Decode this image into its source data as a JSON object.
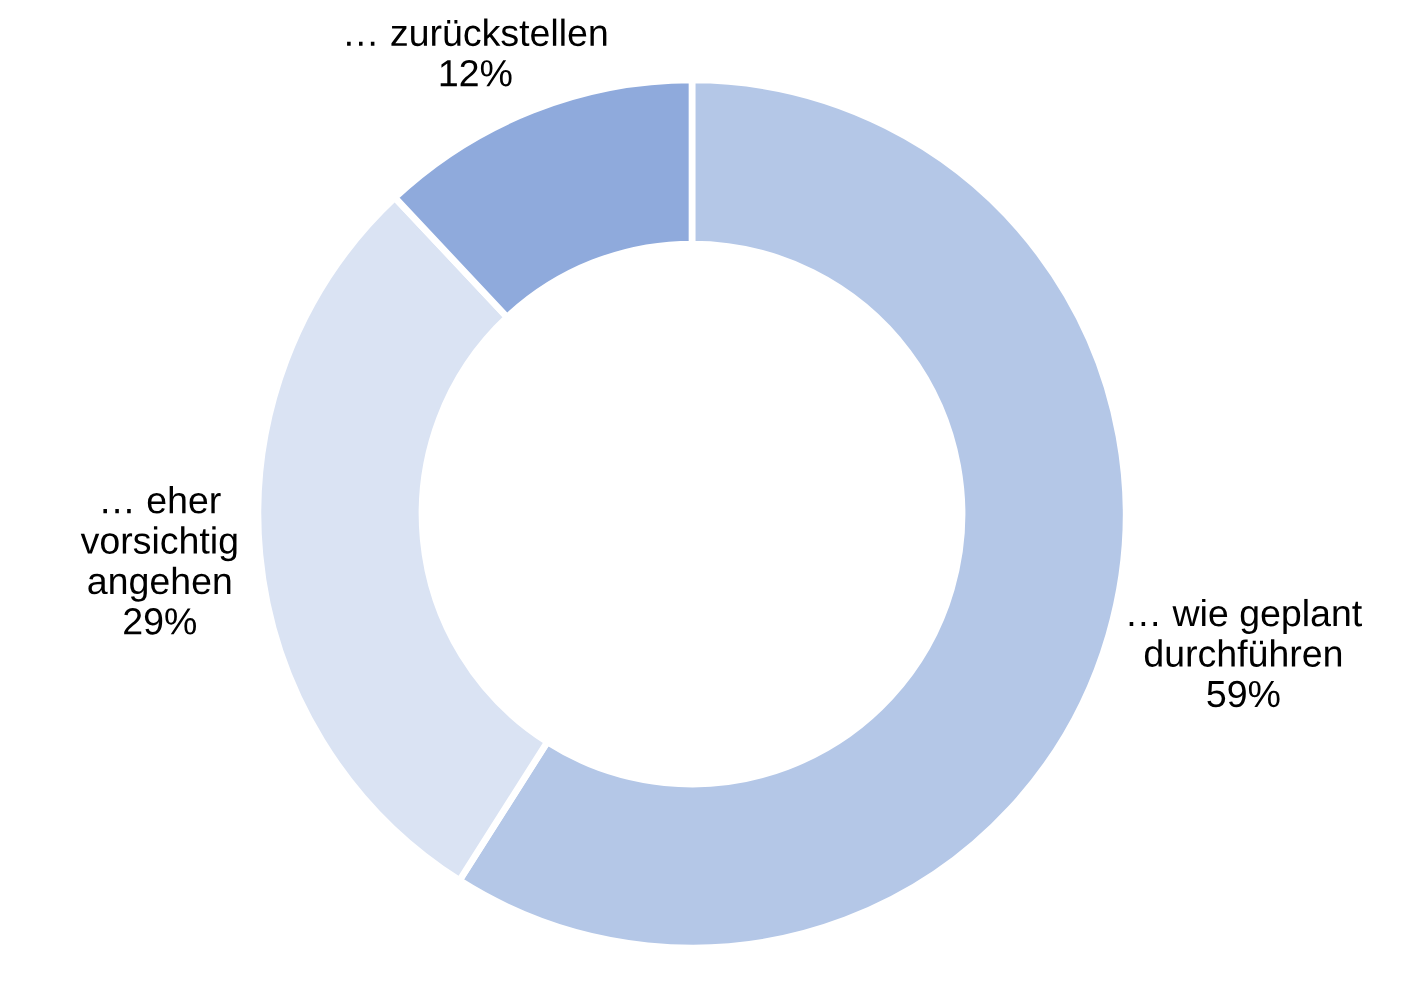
{
  "chart_data": {
    "type": "donut",
    "categories": [
      "… wie geplant\ndurchführen",
      "… eher\nvorsichtig\nangehen",
      "… zurückstellen"
    ],
    "values": [
      59,
      29,
      12
    ],
    "colors": [
      "#b4c7e7",
      "#dae3f3",
      "#8faadc"
    ],
    "value_labels": [
      "59%",
      "29%",
      "12%"
    ]
  }
}
